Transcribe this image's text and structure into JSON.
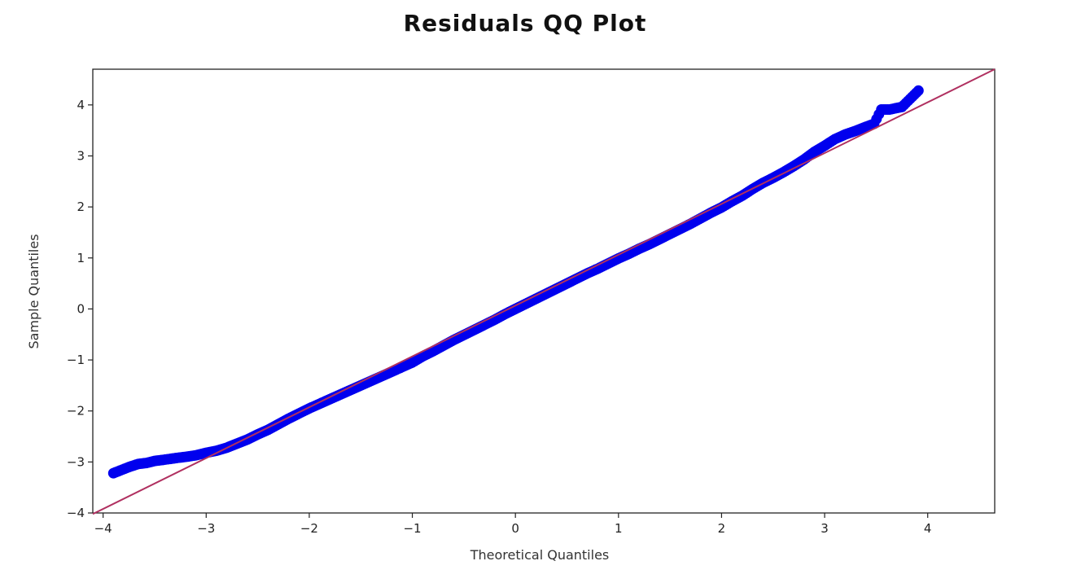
{
  "chart_data": {
    "type": "scatter",
    "title": "Residuals QQ Plot",
    "xlabel": "Theoretical Quantiles",
    "ylabel": "Sample Quantiles",
    "xlim": [
      -4.1,
      4.65
    ],
    "ylim": [
      -4.0,
      4.7
    ],
    "xticks": [
      -4,
      -3,
      -2,
      -1,
      0,
      1,
      2,
      3,
      4
    ],
    "yticks": [
      -4,
      -3,
      -2,
      -1,
      0,
      1,
      2,
      3,
      4
    ],
    "xtick_labels": [
      "−4",
      "−3",
      "−2",
      "−1",
      "0",
      "1",
      "2",
      "3",
      "4"
    ],
    "ytick_labels": [
      "−4",
      "−3",
      "−2",
      "−1",
      "0",
      "1",
      "2",
      "3",
      "4"
    ],
    "grid": false,
    "series": [
      {
        "color": "#0000ee",
        "points": [
          [
            -3.9,
            -3.22
          ],
          [
            -3.75,
            -3.1
          ],
          [
            -3.66,
            -3.04
          ],
          [
            -3.58,
            -3.02
          ],
          [
            -3.5,
            -2.98
          ],
          [
            -3.42,
            -2.96
          ],
          [
            -3.35,
            -2.94
          ],
          [
            -3.28,
            -2.92
          ],
          [
            -3.2,
            -2.9
          ],
          [
            -3.1,
            -2.87
          ],
          [
            -3.0,
            -2.82
          ],
          [
            -2.9,
            -2.78
          ],
          [
            -2.8,
            -2.72
          ],
          [
            -2.7,
            -2.64
          ],
          [
            -2.6,
            -2.56
          ],
          [
            -2.5,
            -2.46
          ],
          [
            -2.4,
            -2.37
          ],
          [
            -2.3,
            -2.26
          ],
          [
            -2.2,
            -2.15
          ],
          [
            -2.1,
            -2.05
          ],
          [
            -2.0,
            -1.95
          ],
          [
            -1.9,
            -1.86
          ],
          [
            -1.8,
            -1.77
          ],
          [
            -1.7,
            -1.68
          ],
          [
            -1.6,
            -1.59
          ],
          [
            -1.5,
            -1.5
          ],
          [
            -1.4,
            -1.41
          ],
          [
            -1.3,
            -1.32
          ],
          [
            -1.2,
            -1.23
          ],
          [
            -1.1,
            -1.14
          ],
          [
            -1.0,
            -1.05
          ],
          [
            -0.9,
            -0.93
          ],
          [
            -0.8,
            -0.83
          ],
          [
            -0.7,
            -0.72
          ],
          [
            -0.6,
            -0.61
          ],
          [
            -0.5,
            -0.51
          ],
          [
            -0.4,
            -0.41
          ],
          [
            -0.3,
            -0.31
          ],
          [
            -0.2,
            -0.21
          ],
          [
            -0.1,
            -0.1
          ],
          [
            0.0,
            0.0
          ],
          [
            0.1,
            0.1
          ],
          [
            0.2,
            0.2
          ],
          [
            0.3,
            0.3
          ],
          [
            0.4,
            0.4
          ],
          [
            0.5,
            0.5
          ],
          [
            0.6,
            0.6
          ],
          [
            0.7,
            0.7
          ],
          [
            0.8,
            0.79
          ],
          [
            0.9,
            0.89
          ],
          [
            1.0,
            0.99
          ],
          [
            1.1,
            1.08
          ],
          [
            1.2,
            1.18
          ],
          [
            1.3,
            1.27
          ],
          [
            1.4,
            1.37
          ],
          [
            1.5,
            1.47
          ],
          [
            1.6,
            1.57
          ],
          [
            1.7,
            1.67
          ],
          [
            1.8,
            1.78
          ],
          [
            1.9,
            1.89
          ],
          [
            2.0,
            1.99
          ],
          [
            2.1,
            2.11
          ],
          [
            2.2,
            2.22
          ],
          [
            2.3,
            2.35
          ],
          [
            2.4,
            2.47
          ],
          [
            2.5,
            2.57
          ],
          [
            2.6,
            2.68
          ],
          [
            2.7,
            2.8
          ],
          [
            2.8,
            2.93
          ],
          [
            2.9,
            3.08
          ],
          [
            3.0,
            3.2
          ],
          [
            3.1,
            3.33
          ],
          [
            3.2,
            3.42
          ],
          [
            3.3,
            3.49
          ],
          [
            3.4,
            3.57
          ],
          [
            3.48,
            3.63
          ],
          [
            3.55,
            3.91
          ],
          [
            3.63,
            3.91
          ],
          [
            3.75,
            3.96
          ],
          [
            3.91,
            4.28
          ]
        ]
      }
    ],
    "reference_line": {
      "color": "#b03060",
      "from": [
        -4.1,
        -4.02
      ],
      "to": [
        4.65,
        4.7
      ]
    }
  }
}
